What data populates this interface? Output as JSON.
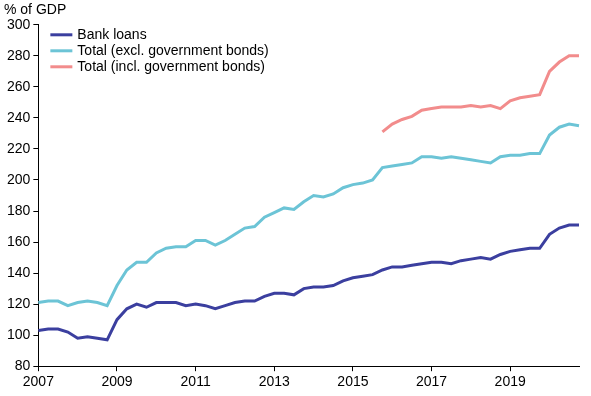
{
  "chart_data": {
    "type": "line",
    "y_label": "% of GDP",
    "categories": [
      "2007",
      null,
      null,
      null,
      null,
      null,
      null,
      null,
      "2009",
      null,
      null,
      null,
      null,
      null,
      null,
      null,
      "2011",
      null,
      null,
      null,
      null,
      null,
      null,
      null,
      "2013",
      null,
      null,
      null,
      null,
      null,
      null,
      null,
      "2015",
      null,
      null,
      null,
      null,
      null,
      null,
      null,
      "2017",
      null,
      null,
      null,
      null,
      null,
      null,
      null,
      "2019",
      null,
      null,
      null,
      null,
      null,
      null,
      null
    ],
    "series": [
      {
        "name": "Bank loans",
        "color": "#3b3f9f",
        "values": [
          103,
          104,
          104,
          102,
          98,
          99,
          98,
          97,
          110,
          117,
          120,
          118,
          121,
          121,
          121,
          119,
          120,
          119,
          117,
          119,
          121,
          122,
          122,
          125,
          127,
          127,
          126,
          130,
          131,
          131,
          132,
          135,
          137,
          138,
          139,
          142,
          144,
          144,
          145,
          146,
          147,
          147,
          146,
          148,
          149,
          150,
          149,
          152,
          154,
          155,
          156,
          156,
          165,
          169,
          171,
          171
        ]
      },
      {
        "name": "Total (excl. government bonds)",
        "color": "#6cc4d6",
        "values": [
          121,
          122,
          122,
          119,
          121,
          122,
          121,
          119,
          132,
          142,
          147,
          147,
          153,
          156,
          157,
          157,
          161,
          161,
          158,
          161,
          165,
          169,
          170,
          176,
          179,
          182,
          181,
          186,
          190,
          189,
          191,
          195,
          197,
          198,
          200,
          208,
          209,
          210,
          211,
          215,
          215,
          214,
          215,
          214,
          213,
          212,
          211,
          215,
          216,
          216,
          217,
          217,
          229,
          234,
          236,
          235
        ]
      },
      {
        "name": "Total (incl. government bonds)",
        "color": "#f28c8c",
        "values": [
          null,
          null,
          null,
          null,
          null,
          null,
          null,
          null,
          null,
          null,
          null,
          null,
          null,
          null,
          null,
          null,
          null,
          null,
          null,
          null,
          null,
          null,
          null,
          null,
          null,
          null,
          null,
          null,
          null,
          null,
          null,
          null,
          null,
          null,
          null,
          231,
          236,
          239,
          241,
          245,
          246,
          247,
          247,
          247,
          248,
          247,
          248,
          246,
          251,
          253,
          254,
          255,
          270,
          276,
          280,
          280
        ]
      }
    ],
    "ylim": [
      80,
      300
    ],
    "yticks": [
      80,
      100,
      120,
      140,
      160,
      180,
      200,
      220,
      240,
      260,
      280,
      300
    ],
    "grid": false,
    "legend": "upper left"
  }
}
